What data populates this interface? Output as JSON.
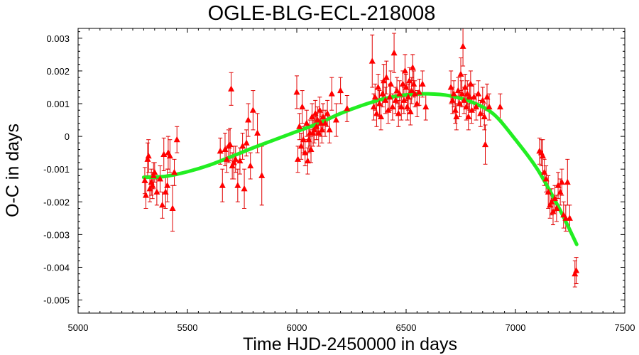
{
  "chart_data": {
    "type": "scatter",
    "title": "OGLE-BLG-ECL-218008",
    "xlabel": "Time HJD-2450000 in days",
    "ylabel": "O-C in days",
    "xlim": [
      5000,
      7500
    ],
    "ylim": [
      -0.0054,
      0.0033
    ],
    "xticks": [
      5000,
      5500,
      6000,
      6500,
      7000,
      7500
    ],
    "xtick_labels": [
      "5000",
      "5500",
      "6000",
      "6500",
      "7000",
      "7500"
    ],
    "yticks": [
      0.003,
      0.002,
      0.001,
      0,
      -0.001,
      -0.002,
      -0.003,
      -0.004,
      -0.005
    ],
    "ytick_labels": [
      "0.003",
      "0.002",
      "0.001",
      "0",
      "-0.001",
      "-0.002",
      "-0.003",
      "-0.004",
      "-0.005"
    ],
    "grid": false,
    "colors": {
      "points": "#ff0000",
      "error_bars": "#e00000",
      "fit": "#22ee22"
    },
    "series": [
      {
        "kind": "points_with_error_bars",
        "points": [
          [
            5305,
            -0.00135,
            0.0004
          ],
          [
            5310,
            -0.0018,
            0.0004
          ],
          [
            5318,
            -0.0007,
            0.0005
          ],
          [
            5322,
            -0.0006,
            0.0005
          ],
          [
            5328,
            -0.0016,
            0.0004
          ],
          [
            5335,
            -0.0014,
            0.0004
          ],
          [
            5340,
            -0.0015,
            0.0004
          ],
          [
            5345,
            -0.0012,
            0.0004
          ],
          [
            5350,
            -0.0011,
            0.0003
          ],
          [
            5360,
            -0.0017,
            0.0004
          ],
          [
            5375,
            -0.0013,
            0.0004
          ],
          [
            5385,
            -0.0021,
            0.0004
          ],
          [
            5392,
            -0.00055,
            0.0005
          ],
          [
            5400,
            -0.0017,
            0.0005
          ],
          [
            5408,
            -0.0015,
            0.0005
          ],
          [
            5412,
            -0.0005,
            0.0005
          ],
          [
            5420,
            -0.0006,
            0.0005
          ],
          [
            5432,
            -0.0022,
            0.0007
          ],
          [
            5440,
            -0.0011,
            0.0004
          ],
          [
            5452,
            -0.0001,
            0.0004
          ],
          [
            5650,
            -0.00045,
            0.0004
          ],
          [
            5660,
            -0.0015,
            0.0005
          ],
          [
            5672,
            -0.0004,
            0.0005
          ],
          [
            5680,
            -0.0007,
            0.0004
          ],
          [
            5688,
            -0.0003,
            0.0005
          ],
          [
            5695,
            -0.00025,
            0.0005
          ],
          [
            5700,
            0.00145,
            0.0005
          ],
          [
            5705,
            -0.0009,
            0.0004
          ],
          [
            5712,
            -0.0008,
            0.0005
          ],
          [
            5720,
            -0.0007,
            0.0004
          ],
          [
            5730,
            -0.0015,
            0.0005
          ],
          [
            5740,
            -0.00075,
            0.0004
          ],
          [
            5752,
            -0.0003,
            0.0004
          ],
          [
            5760,
            -0.0016,
            0.0006
          ],
          [
            5770,
            -0.0002,
            0.0004
          ],
          [
            5778,
            0.0005,
            0.0005
          ],
          [
            5788,
            -0.0009,
            0.0004
          ],
          [
            5800,
            0.0008,
            0.0006
          ],
          [
            5820,
            0.0001,
            0.0006
          ],
          [
            5840,
            -0.0012,
            0.0009
          ],
          [
            6000,
            0.00135,
            0.0005
          ],
          [
            6005,
            -0.0007,
            0.0004
          ],
          [
            6012,
            0.0003,
            0.0004
          ],
          [
            6020,
            -0.0003,
            0.0004
          ],
          [
            6025,
            0.0009,
            0.0005
          ],
          [
            6030,
            -0.0001,
            0.0004
          ],
          [
            6038,
            -0.0005,
            0.0004
          ],
          [
            6045,
            0.0004,
            0.0004
          ],
          [
            6050,
            -0.00075,
            0.0004
          ],
          [
            6055,
            -0.0001,
            0.0004
          ],
          [
            6060,
            0.0001,
            0.0004
          ],
          [
            6065,
            -0.0004,
            0.0004
          ],
          [
            6070,
            0.0006,
            0.0004
          ],
          [
            6075,
            0.0001,
            0.0004
          ],
          [
            6080,
            0.0002,
            0.0004
          ],
          [
            6085,
            0.0007,
            0.0004
          ],
          [
            6090,
            0.0003,
            0.0004
          ],
          [
            6095,
            0.0005,
            0.0004
          ],
          [
            6100,
            0.0001,
            0.0004
          ],
          [
            6105,
            0.0008,
            0.0004
          ],
          [
            6110,
            0.0004,
            0.0004
          ],
          [
            6115,
            0.0002,
            0.0004
          ],
          [
            6120,
            0.0006,
            0.0004
          ],
          [
            6130,
            0.0004,
            0.0004
          ],
          [
            6140,
            0.0007,
            0.0004
          ],
          [
            6150,
            0.0002,
            0.0004
          ],
          [
            6160,
            0.0013,
            0.0005
          ],
          [
            6180,
            0.0005,
            0.0005
          ],
          [
            6200,
            0.0014,
            0.0004
          ],
          [
            6230,
            0.00085,
            0.0004
          ],
          [
            6345,
            0.0023,
            0.0008
          ],
          [
            6352,
            0.0009,
            0.0004
          ],
          [
            6358,
            0.0012,
            0.0004
          ],
          [
            6365,
            0.0007,
            0.0004
          ],
          [
            6372,
            0.0015,
            0.0004
          ],
          [
            6378,
            0.001,
            0.0004
          ],
          [
            6385,
            0.0006,
            0.0004
          ],
          [
            6392,
            0.0013,
            0.0004
          ],
          [
            6398,
            0.0017,
            0.0005
          ],
          [
            6405,
            0.0011,
            0.0004
          ],
          [
            6410,
            0.0018,
            0.0005
          ],
          [
            6418,
            0.0008,
            0.0004
          ],
          [
            6425,
            0.0012,
            0.0004
          ],
          [
            6430,
            0.0016,
            0.0004
          ],
          [
            6438,
            0.0009,
            0.0004
          ],
          [
            6445,
            0.00255,
            0.0006
          ],
          [
            6452,
            0.0011,
            0.0004
          ],
          [
            6458,
            0.0014,
            0.0004
          ],
          [
            6465,
            0.0007,
            0.0004
          ],
          [
            6470,
            0.0013,
            0.0004
          ],
          [
            6478,
            0.0009,
            0.0004
          ],
          [
            6485,
            0.0016,
            0.0004
          ],
          [
            6490,
            0.0011,
            0.0004
          ],
          [
            6495,
            0.002,
            0.0005
          ],
          [
            6500,
            0.0015,
            0.0004
          ],
          [
            6505,
            0.0009,
            0.0004
          ],
          [
            6510,
            0.0012,
            0.0004
          ],
          [
            6515,
            0.0017,
            0.0004
          ],
          [
            6520,
            0.00075,
            0.0004
          ],
          [
            6525,
            0.0014,
            0.0004
          ],
          [
            6530,
            0.0021,
            0.0004
          ],
          [
            6535,
            0.0016,
            0.0004
          ],
          [
            6540,
            0.0013,
            0.0004
          ],
          [
            6550,
            0.001,
            0.0004
          ],
          [
            6560,
            0.00135,
            0.0004
          ],
          [
            6575,
            0.0016,
            0.0004
          ],
          [
            6590,
            0.0009,
            0.0004
          ],
          [
            6705,
            0.0015,
            0.0005
          ],
          [
            6712,
            0.0011,
            0.0004
          ],
          [
            6718,
            0.0013,
            0.0004
          ],
          [
            6725,
            0.0008,
            0.0004
          ],
          [
            6730,
            0.0006,
            0.0004
          ],
          [
            6738,
            0.0014,
            0.0004
          ],
          [
            6745,
            0.001,
            0.0004
          ],
          [
            6750,
            0.0019,
            0.0005
          ],
          [
            6755,
            0.0013,
            0.0004
          ],
          [
            6760,
            0.00275,
            0.0006
          ],
          [
            6765,
            0.0011,
            0.0004
          ],
          [
            6770,
            0.0015,
            0.0004
          ],
          [
            6775,
            0.0009,
            0.0004
          ],
          [
            6780,
            0.0013,
            0.0004
          ],
          [
            6785,
            0.0006,
            0.0004
          ],
          [
            6790,
            0.0012,
            0.0004
          ],
          [
            6795,
            0.0016,
            0.0004
          ],
          [
            6800,
            0.0008,
            0.0004
          ],
          [
            6810,
            0.0012,
            0.0004
          ],
          [
            6820,
            0.0009,
            0.0004
          ],
          [
            6830,
            0.0013,
            0.0004
          ],
          [
            6840,
            0.0007,
            0.0004
          ],
          [
            6850,
            0.0011,
            0.0004
          ],
          [
            6858,
            0.0006,
            0.0004
          ],
          [
            6862,
            -0.00025,
            0.0006
          ],
          [
            6870,
            0.0012,
            0.0004
          ],
          [
            6880,
            0.0009,
            0.0004
          ],
          [
            6930,
            0.0009,
            0.0004
          ],
          [
            7110,
            -0.00045,
            0.0004
          ],
          [
            7118,
            -0.0005,
            0.0004
          ],
          [
            7125,
            -0.0006,
            0.0005
          ],
          [
            7132,
            -0.0011,
            0.0004
          ],
          [
            7140,
            -0.0013,
            0.0004
          ],
          [
            7150,
            -0.0017,
            0.0005
          ],
          [
            7158,
            -0.0021,
            0.0004
          ],
          [
            7165,
            -0.002,
            0.0004
          ],
          [
            7172,
            -0.0023,
            0.0004
          ],
          [
            7180,
            -0.0019,
            0.0004
          ],
          [
            7188,
            -0.0022,
            0.0004
          ],
          [
            7195,
            -0.0015,
            0.0004
          ],
          [
            7205,
            -0.0017,
            0.0004
          ],
          [
            7212,
            -0.0014,
            0.0004
          ],
          [
            7220,
            -0.0024,
            0.0004
          ],
          [
            7230,
            -0.0025,
            0.0004
          ],
          [
            7238,
            -0.0014,
            0.0007
          ],
          [
            7248,
            -0.0025,
            0.0004
          ],
          [
            7272,
            -0.0042,
            0.0004
          ],
          [
            7278,
            -0.0041,
            0.0004
          ]
        ]
      },
      {
        "kind": "fit_curve",
        "x": [
          5300,
          5400,
          5500,
          5600,
          5700,
          5800,
          5900,
          6000,
          6100,
          6200,
          6300,
          6400,
          6500,
          6600,
          6700,
          6800,
          6900,
          7000,
          7100,
          7200,
          7280
        ],
        "y": [
          -0.00125,
          -0.00122,
          -0.00108,
          -0.00088,
          -0.00062,
          -0.00035,
          -0.0001,
          0.00015,
          0.0004,
          0.0007,
          0.00095,
          0.00115,
          0.00127,
          0.0013,
          0.00124,
          0.00105,
          0.00068,
          -0.0001,
          -0.001,
          -0.0022,
          -0.0033
        ]
      }
    ]
  }
}
